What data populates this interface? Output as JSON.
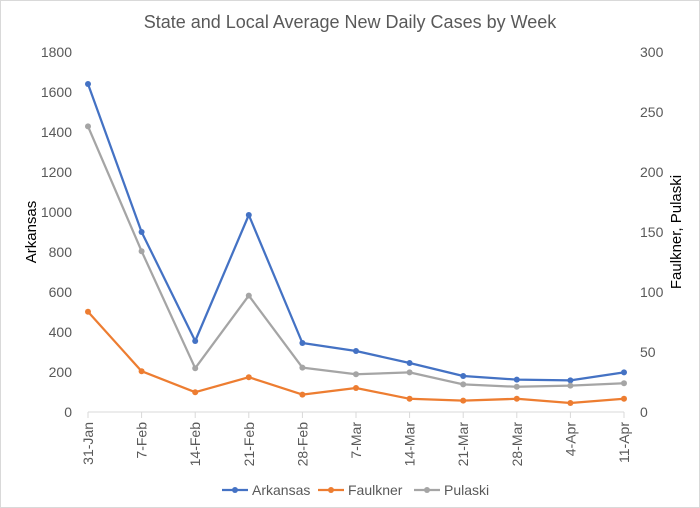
{
  "chart_data": {
    "type": "line",
    "title": "State and Local Average New Daily Cases by Week",
    "xlabel": "",
    "ylabel": "Arkansas",
    "y2label": "Faulkner, Pulaski",
    "categories": [
      "31-Jan",
      "7-Feb",
      "14-Feb",
      "21-Feb",
      "28-Feb",
      "7-Mar",
      "14-Mar",
      "21-Mar",
      "28-Mar",
      "4-Apr",
      "11-Apr"
    ],
    "ylim": [
      0,
      1800
    ],
    "y2lim": [
      0,
      300
    ],
    "yticks": [
      "0",
      "200",
      "400",
      "600",
      "800",
      "1000",
      "1200",
      "1400",
      "1600",
      "1800"
    ],
    "y2ticks": [
      "0",
      "50",
      "100",
      "150",
      "200",
      "250",
      "300"
    ],
    "grid": false,
    "legend_position": "bottom",
    "series": [
      {
        "name": "Arkansas",
        "axis": "left",
        "color": "#4472c4",
        "values": [
          1640,
          900,
          355,
          985,
          345,
          305,
          245,
          180,
          162,
          158,
          198
        ]
      },
      {
        "name": "Faulkner",
        "axis": "right",
        "color": "#ed7d31",
        "values": [
          83.5,
          34,
          16.5,
          29,
          14.5,
          20,
          11,
          9.5,
          11,
          7.5,
          11
        ]
      },
      {
        "name": "Pulaski",
        "axis": "right",
        "color": "#a5a5a5",
        "values": [
          238,
          134,
          36.5,
          97,
          37,
          31.5,
          33,
          23,
          21,
          22,
          24
        ]
      }
    ]
  }
}
